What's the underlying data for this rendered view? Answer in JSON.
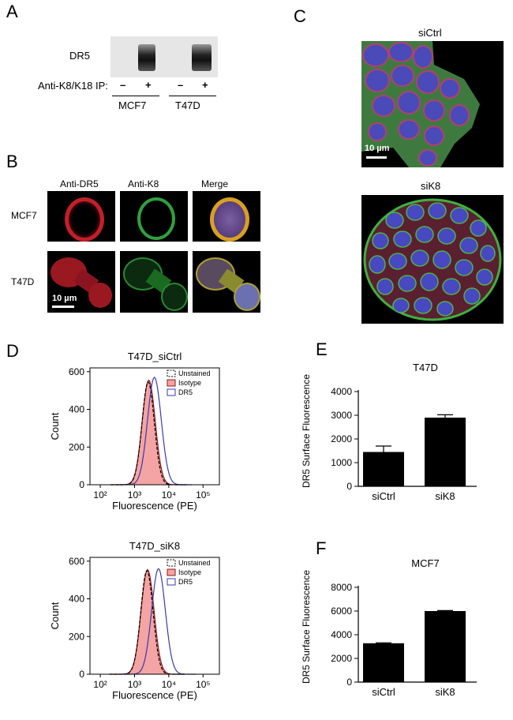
{
  "panels": {
    "A": {
      "letter": "A",
      "row_label": "DR5",
      "ip_label": "Anti-K8/K18 IP:",
      "signs": [
        "–",
        "+",
        "–",
        "+"
      ],
      "lanes": [
        "MCF7",
        "T47D"
      ]
    },
    "B": {
      "letter": "B",
      "columns": [
        "Anti-DR5",
        "Anti-K8",
        "Merge"
      ],
      "rows": [
        "MCF7",
        "T47D"
      ],
      "scale_bar": "10 µm"
    },
    "C": {
      "letter": "C",
      "top_title": "siCtrl",
      "bottom_title": "siK8",
      "scale_bar": "10 µm"
    },
    "D": {
      "letter": "D"
    },
    "E": {
      "letter": "E"
    },
    "F": {
      "letter": "F"
    }
  },
  "chart_data": [
    {
      "id": "D-top",
      "type": "line",
      "title": "T47D_siCtrl",
      "xlabel": "Fluorescence (PE)",
      "ylabel": "Count",
      "x_scale": "log",
      "xlim": [
        50,
        300000
      ],
      "ylim": [
        0,
        620
      ],
      "yticks": [
        0,
        200,
        400,
        600
      ],
      "xtick_labels": [
        "10²",
        "10³",
        "10⁴",
        "10⁵"
      ],
      "legend": [
        "Unstained",
        "Isotype",
        "DR5"
      ],
      "series": [
        {
          "name": "Unstained",
          "peak_x": 2500,
          "peak_y": 545
        },
        {
          "name": "Isotype",
          "peak_x": 2600,
          "peak_y": 555
        },
        {
          "name": "DR5",
          "peak_x": 3800,
          "peak_y": 570
        }
      ]
    },
    {
      "id": "D-bottom",
      "type": "line",
      "title": "T47D_siK8",
      "xlabel": "Fluorescence (PE)",
      "ylabel": "Count",
      "x_scale": "log",
      "xlim": [
        50,
        300000
      ],
      "ylim": [
        0,
        620
      ],
      "yticks": [
        0,
        200,
        400,
        600
      ],
      "xtick_labels": [
        "10²",
        "10³",
        "10⁴",
        "10⁵"
      ],
      "legend": [
        "Unstained",
        "Isotype",
        "DR5"
      ],
      "series": [
        {
          "name": "Unstained",
          "peak_x": 2300,
          "peak_y": 550
        },
        {
          "name": "Isotype",
          "peak_x": 2400,
          "peak_y": 555
        },
        {
          "name": "DR5",
          "peak_x": 5000,
          "peak_y": 560
        }
      ]
    },
    {
      "id": "E",
      "type": "bar",
      "title": "T47D",
      "ylabel": "DR5 Surface Fluorescence",
      "categories": [
        "siCtrl",
        "siK8"
      ],
      "values": [
        1450,
        2900
      ],
      "errors": [
        250,
        120
      ],
      "ylim": [
        0,
        4000
      ],
      "yticks": [
        0,
        1000,
        2000,
        3000,
        4000
      ]
    },
    {
      "id": "F",
      "type": "bar",
      "title": "MCF7",
      "ylabel": "DR5 Surface Fluorescence",
      "categories": [
        "siCtrl",
        "siK8"
      ],
      "values": [
        3280,
        6000
      ],
      "errors": [
        40,
        40
      ],
      "ylim": [
        0,
        8000
      ],
      "yticks": [
        0,
        2000,
        4000,
        6000,
        8000
      ]
    }
  ],
  "colors": {
    "isotype_fill": "#f4a4a4",
    "isotype_line": "#8b1a1a",
    "dr5_line": "#3a3aa8",
    "bar": "#000000"
  }
}
